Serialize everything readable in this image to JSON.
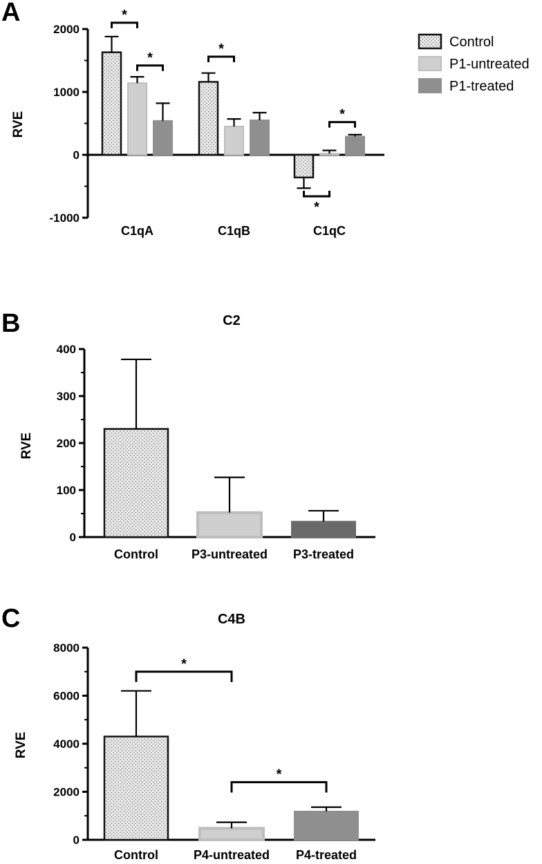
{
  "colors": {
    "control_fill": "#f0f0f0",
    "control_dots": "#555555",
    "control_stroke": "#111111",
    "untreated": "#cfcfcf",
    "treated": "#8f8f8f",
    "treated_dark": "#6a6a6a",
    "axis": "#000000"
  },
  "chart_data": [
    {
      "panel": "A",
      "type": "bar",
      "title": "",
      "ylabel": "RVE",
      "ylim": [
        -1000,
        2000
      ],
      "yticks": [
        2000,
        1000,
        0,
        -1000
      ],
      "categories": [
        "C1qA",
        "C1qB",
        "C1qC"
      ],
      "series": [
        {
          "name": "Control",
          "style": "dotted",
          "values": [
            1630,
            1160,
            -360
          ],
          "errors": [
            250,
            140,
            170
          ]
        },
        {
          "name": "P1-untreated",
          "style": "light",
          "values": [
            1140,
            450,
            20
          ],
          "errors": [
            100,
            120,
            50
          ]
        },
        {
          "name": "P1-treated",
          "style": "mid",
          "values": [
            540,
            550,
            290
          ],
          "errors": [
            280,
            120,
            30
          ]
        }
      ],
      "legend": "right",
      "significance": [
        {
          "group": 0,
          "from": 0,
          "to": 1,
          "y": 2100,
          "label": "*",
          "side": "above"
        },
        {
          "group": 0,
          "from": 1,
          "to": 2,
          "y": 1420,
          "label": "*",
          "side": "above"
        },
        {
          "group": 1,
          "from": 0,
          "to": 1,
          "y": 1560,
          "label": "*",
          "side": "above"
        },
        {
          "group": 2,
          "from": 1,
          "to": 2,
          "y": 520,
          "label": "*",
          "side": "above"
        },
        {
          "group": 2,
          "from": 0,
          "to": 1,
          "y": -660,
          "label": "*",
          "side": "below"
        }
      ]
    },
    {
      "panel": "B",
      "type": "bar",
      "title": "C2",
      "ylabel": "RVE",
      "ylim": [
        0,
        400
      ],
      "yticks": [
        400,
        300,
        200,
        100,
        0
      ],
      "categories": [
        "Control",
        "P3-untreated",
        "P3-treated"
      ],
      "styles": [
        "dotted",
        "light",
        "dark"
      ],
      "values": [
        230,
        52,
        33
      ],
      "errors": [
        148,
        75,
        23
      ],
      "significance": []
    },
    {
      "panel": "C",
      "type": "bar",
      "title": "C4B",
      "ylabel": "RVE",
      "ylim": [
        0,
        8000
      ],
      "yticks": [
        8000,
        6000,
        4000,
        2000,
        0
      ],
      "categories": [
        "Control",
        "P4-untreated",
        "P4-treated"
      ],
      "styles": [
        "dotted",
        "light",
        "mid"
      ],
      "values": [
        4300,
        480,
        1180
      ],
      "errors": [
        1900,
        250,
        180
      ],
      "significance": [
        {
          "from": 0,
          "to": 1,
          "y": 7000,
          "label": "*",
          "side": "above"
        },
        {
          "from": 1,
          "to": 2,
          "y": 2400,
          "label": "*",
          "side": "above"
        }
      ]
    }
  ]
}
